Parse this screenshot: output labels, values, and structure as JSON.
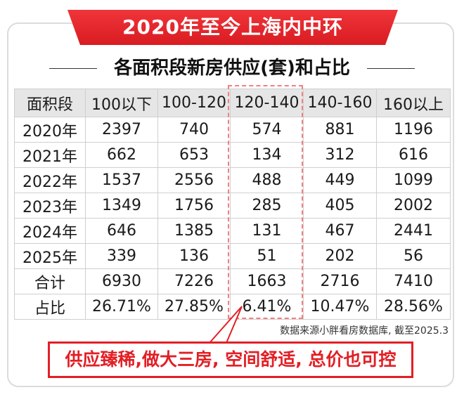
{
  "title": "2020年至今上海内中环",
  "subtitle": "各面积段新房供应(套)和占比",
  "colors": {
    "accent": "#e21f25",
    "header_bg": "#e6e6e6",
    "banner": "#e8262b"
  },
  "chart_data": {
    "type": "table",
    "title": "2020年至今上海内中环 各面积段新房供应(套)和占比",
    "columns": [
      "面积段",
      "100以下",
      "100-120",
      "120-140",
      "140-160",
      "160以上"
    ],
    "rows": [
      [
        "2020年",
        "2397",
        "740",
        "574",
        "881",
        "1196"
      ],
      [
        "2021年",
        "662",
        "653",
        "134",
        "312",
        "616"
      ],
      [
        "2022年",
        "1537",
        "2556",
        "488",
        "449",
        "1099"
      ],
      [
        "2023年",
        "1349",
        "1756",
        "285",
        "405",
        "2002"
      ],
      [
        "2024年",
        "646",
        "1385",
        "131",
        "467",
        "2441"
      ],
      [
        "2025年",
        "339",
        "136",
        "51",
        "202",
        "56"
      ],
      [
        "合计",
        "6930",
        "7226",
        "1663",
        "2716",
        "7410"
      ],
      [
        "占比",
        "26.71%",
        "27.85%",
        "6.41%",
        "10.47%",
        "28.56%"
      ]
    ],
    "highlight_column": "120-140",
    "highlight_value": "6.41%"
  },
  "source": "数据来源小胖看房数据库, 截至2025.3",
  "callout": "供应臻稀,做大三房, 空间舒适, 总价也可控"
}
